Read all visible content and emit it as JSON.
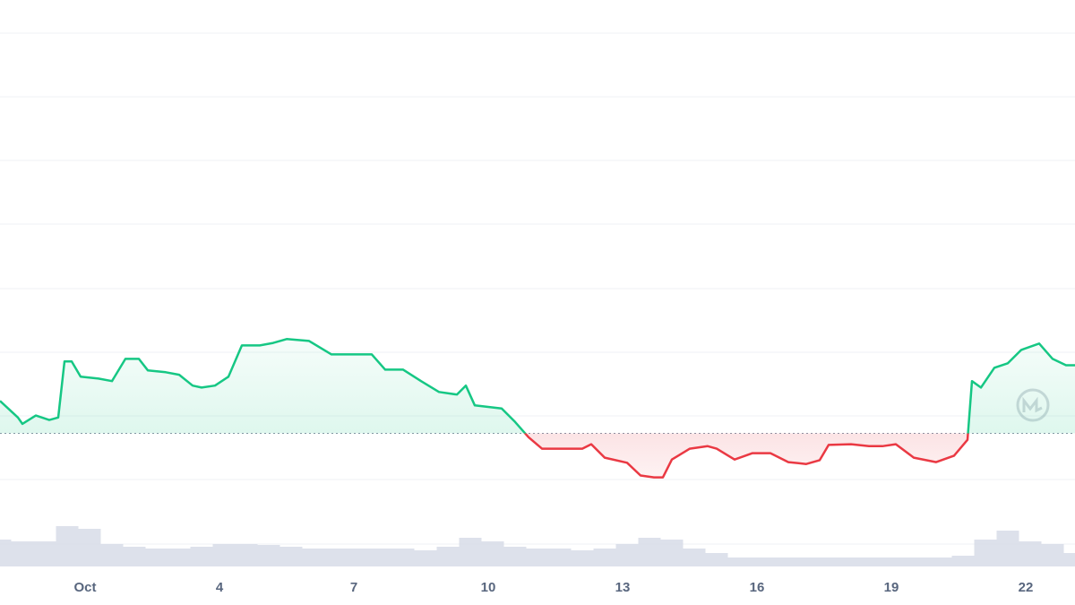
{
  "chart_data": {
    "type": "line",
    "up_color": "#16c784",
    "down_color": "#ea3943",
    "baseline": 0,
    "xlim": [
      -0.9,
      23.1
    ],
    "ylim": [
      -2.2,
      6.8
    ],
    "y2lim": [
      0,
      10
    ],
    "xticks": [
      {
        "value": 1,
        "label": "Oct"
      },
      4,
      7,
      10,
      13,
      16,
      19,
      22
    ],
    "x": [
      -0.9,
      -0.5,
      -0.4,
      -0.1,
      0.2,
      0.4,
      0.54,
      0.7,
      0.9,
      1.3,
      1.6,
      1.9,
      2.2,
      2.4,
      2.8,
      3.1,
      3.4,
      3.6,
      3.9,
      4.2,
      4.5,
      4.9,
      5.2,
      5.5,
      6.0,
      6.5,
      7.0,
      7.4,
      7.7,
      8.1,
      8.5,
      8.9,
      9.3,
      9.5,
      9.7,
      10.3,
      10.6,
      10.9,
      11.2,
      11.7,
      12.1,
      12.3,
      12.6,
      13.1,
      13.4,
      13.7,
      13.9,
      14.1,
      14.5,
      14.9,
      15.1,
      15.5,
      15.9,
      16.3,
      16.7,
      17.1,
      17.4,
      17.6,
      18.1,
      18.5,
      18.8,
      19.1,
      19.5,
      20.0,
      20.4,
      20.7,
      20.8,
      21.0,
      21.3,
      21.6,
      21.9,
      22.3,
      22.6,
      22.9,
      23.1
    ],
    "series": [
      {
        "values": [
          0.51,
          0.25,
          0.15,
          0.28,
          0.21,
          0.25,
          1.13,
          1.13,
          0.89,
          0.86,
          0.82,
          1.17,
          1.17,
          0.99,
          0.96,
          0.92,
          0.75,
          0.72,
          0.75,
          0.89,
          1.38,
          1.38,
          1.42,
          1.48,
          1.45,
          1.24,
          1.24,
          1.24,
          1.0,
          1.0,
          0.82,
          0.65,
          0.61,
          0.75,
          0.44,
          0.39,
          0.18,
          -0.06,
          -0.24,
          -0.24,
          -0.24,
          -0.17,
          -0.38,
          -0.46,
          -0.66,
          -0.69,
          -0.69,
          -0.41,
          -0.24,
          -0.2,
          -0.24,
          -0.41,
          -0.31,
          -0.31,
          -0.45,
          -0.48,
          -0.42,
          -0.18,
          -0.17,
          -0.2,
          -0.2,
          -0.17,
          -0.38,
          -0.45,
          -0.35,
          -0.1,
          0.82,
          0.72,
          1.03,
          1.1,
          1.31,
          1.41,
          1.17,
          1.07,
          1.07
        ]
      }
    ],
    "volume": {
      "color": "#d5d9e6",
      "axis": "y2",
      "x": [
        -0.9,
        -0.4,
        0.1,
        0.6,
        1.1,
        1.6,
        2.1,
        2.6,
        3.1,
        3.6,
        4.1,
        4.6,
        5.1,
        5.6,
        6.1,
        6.6,
        7.1,
        7.6,
        8.1,
        8.6,
        9.1,
        9.6,
        10.1,
        10.6,
        11.1,
        11.6,
        12.1,
        12.6,
        13.1,
        13.6,
        14.1,
        14.6,
        15.1,
        15.6,
        16.1,
        16.6,
        17.1,
        17.6,
        18.1,
        18.6,
        19.1,
        19.6,
        20.1,
        20.6,
        21.1,
        21.6,
        22.1,
        22.6,
        23.1
      ],
      "values": [
        3.0,
        2.8,
        2.8,
        4.5,
        4.2,
        2.5,
        2.2,
        2.0,
        2.0,
        2.2,
        2.5,
        2.5,
        2.4,
        2.2,
        2.0,
        2.0,
        2.0,
        2.0,
        2.0,
        1.8,
        2.2,
        3.2,
        2.8,
        2.2,
        2.0,
        2.0,
        1.8,
        2.0,
        2.5,
        3.2,
        3.0,
        2.0,
        1.5,
        1.0,
        1.0,
        1.0,
        1.0,
        1.0,
        1.0,
        1.0,
        1.0,
        1.0,
        1.0,
        1.2,
        3.0,
        4.0,
        2.8,
        2.5,
        1.5
      ]
    }
  }
}
